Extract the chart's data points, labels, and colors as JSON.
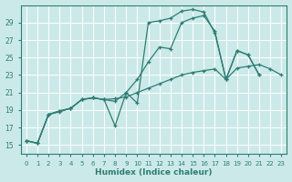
{
  "background_color": "#cce9e9",
  "grid_color": "#b8d8d8",
  "line_color": "#2d7d72",
  "xlabel": "Humidex (Indice chaleur)",
  "xticks": [
    0,
    1,
    2,
    3,
    4,
    5,
    6,
    7,
    8,
    9,
    10,
    11,
    12,
    13,
    14,
    15,
    16,
    17,
    18,
    19,
    20,
    21,
    22,
    23
  ],
  "yticks": [
    15,
    17,
    19,
    21,
    23,
    25,
    27,
    29
  ],
  "ylim": [
    14.0,
    31.0
  ],
  "xlim": [
    -0.5,
    23.5
  ],
  "line1_x": [
    0,
    1,
    2,
    3,
    4,
    5,
    6,
    7,
    8,
    9,
    10,
    11,
    12,
    13,
    14,
    15,
    16,
    17,
    18,
    19,
    20,
    21
  ],
  "line1_y": [
    15.5,
    15.2,
    18.5,
    18.8,
    19.2,
    20.2,
    20.4,
    20.2,
    17.2,
    21.0,
    19.8,
    29.0,
    29.2,
    29.5,
    30.3,
    30.5,
    30.2,
    27.8,
    22.5,
    25.8,
    25.3,
    23.0
  ],
  "line2_x": [
    0,
    1,
    2,
    3,
    4,
    5,
    6,
    7,
    8,
    9,
    10,
    11,
    12,
    13,
    14,
    15,
    16,
    17,
    18,
    19,
    20,
    21,
    22,
    23
  ],
  "line2_y": [
    15.5,
    15.2,
    18.5,
    18.9,
    19.2,
    20.2,
    20.4,
    20.2,
    20.3,
    20.5,
    21.0,
    21.5,
    22.0,
    22.5,
    23.0,
    23.3,
    23.5,
    23.7,
    22.5,
    23.8,
    24.0,
    24.2,
    23.7,
    23.0
  ],
  "line3_x": [
    0,
    1,
    2,
    3,
    4,
    5,
    6,
    7,
    8,
    9,
    10,
    11,
    12,
    13,
    14,
    15,
    16,
    17,
    18,
    19,
    20,
    21
  ],
  "line3_y": [
    15.5,
    15.2,
    18.5,
    18.9,
    19.2,
    20.2,
    20.4,
    20.2,
    20.0,
    21.0,
    22.5,
    24.5,
    26.2,
    26.0,
    29.0,
    29.5,
    29.8,
    28.0,
    22.5,
    25.8,
    25.3,
    23.0
  ]
}
